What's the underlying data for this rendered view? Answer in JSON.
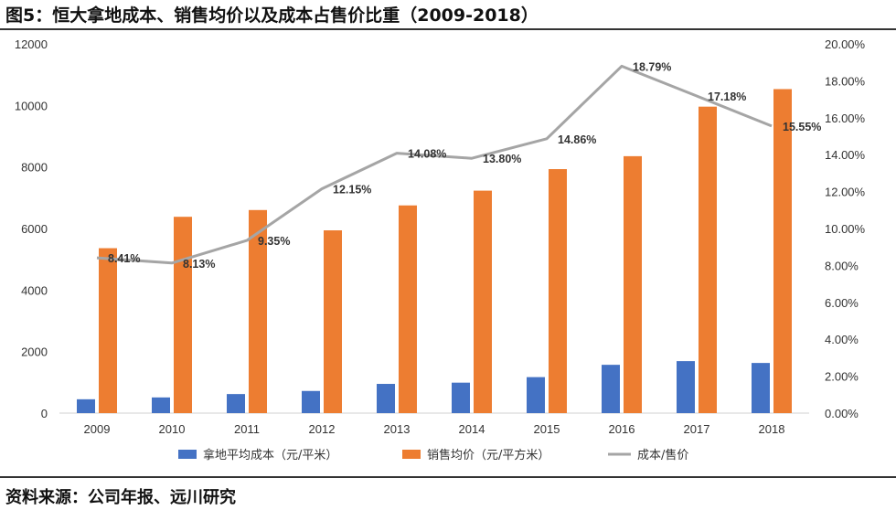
{
  "header": {
    "title": "图5：恒大拿地成本、销售均价以及成本占售价比重（2009-2018）"
  },
  "footer": {
    "source": "资料来源：公司年报、远川研究"
  },
  "colors": {
    "land_cost": "#4472C4",
    "sale_price": "#ED7D31",
    "ratio": "#A5A5A5",
    "axis": "#D9D9D9"
  },
  "chart_data": {
    "type": "bar",
    "title": "图5：恒大拿地成本、销售均价以及成本占售价比重（2009-2018）",
    "categories": [
      "2009",
      "2010",
      "2011",
      "2012",
      "2013",
      "2014",
      "2015",
      "2016",
      "2017",
      "2018"
    ],
    "series": [
      {
        "name": "拿地平均成本（元/平米）",
        "type": "bar",
        "axis": "left",
        "values": [
          450,
          510,
          620,
          720,
          950,
          990,
          1170,
          1570,
          1690,
          1630
        ]
      },
      {
        "name": "销售均价（元/平方米）",
        "type": "bar",
        "axis": "left",
        "values": [
          5360,
          6380,
          6600,
          5940,
          6750,
          7230,
          7930,
          8350,
          9960,
          10530
        ]
      },
      {
        "name": "成本/售价",
        "type": "line",
        "axis": "right",
        "values": [
          8.41,
          8.13,
          9.35,
          12.15,
          14.08,
          13.8,
          14.86,
          18.79,
          17.18,
          15.55
        ],
        "labels": [
          "8.41%",
          "8.13%",
          "9.35%",
          "12.15%",
          "14.08%",
          "13.80%",
          "14.86%",
          "18.79%",
          "17.18%",
          "15.55%"
        ]
      }
    ],
    "left_axis": {
      "ylim": [
        0,
        12000
      ],
      "ticks": [
        "0",
        "2000",
        "4000",
        "6000",
        "8000",
        "10000",
        "12000"
      ]
    },
    "right_axis": {
      "ylim": [
        0,
        20
      ],
      "ticks": [
        "0.00%",
        "2.00%",
        "4.00%",
        "6.00%",
        "8.00%",
        "10.00%",
        "12.00%",
        "14.00%",
        "16.00%",
        "18.00%",
        "20.00%"
      ]
    },
    "grid": false,
    "legend": "bottom-center"
  }
}
